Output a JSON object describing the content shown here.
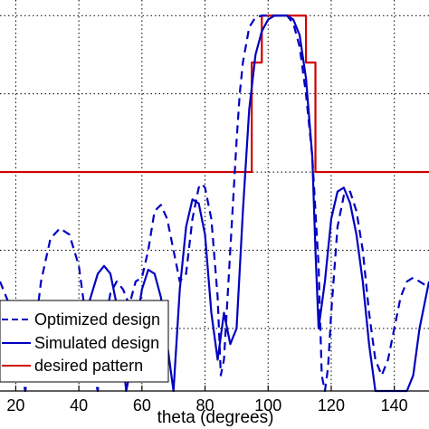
{
  "chart_data": {
    "type": "line",
    "title": "",
    "xlabel": "theta (degrees)",
    "ylabel": "",
    "xlim": [
      15,
      151
    ],
    "ylim": [
      -48,
      2
    ],
    "x_ticks": [
      20,
      40,
      60,
      80,
      100,
      120,
      140
    ],
    "x_tick_labels": [
      "20",
      "40",
      "60",
      "80",
      "100",
      "120",
      "140"
    ],
    "y_grid": [
      -40,
      -30,
      -20,
      -10,
      0
    ],
    "grid": true,
    "legend_position": "bottom-left",
    "series": [
      {
        "name": "Optimized design",
        "color": "#0000c0",
        "dash": "dashed",
        "x": [
          15,
          18,
          21,
          23,
          25,
          28,
          31,
          34,
          37,
          40,
          42,
          44,
          46,
          48,
          50,
          52,
          54,
          56,
          58,
          60,
          62,
          64,
          66,
          68,
          70,
          72,
          74,
          76,
          78,
          79,
          80,
          82,
          84,
          85,
          86,
          88,
          90,
          91,
          92,
          94,
          96,
          98,
          100,
          102,
          104,
          105,
          106,
          108,
          110,
          112,
          114,
          116,
          117,
          118,
          119,
          120,
          122,
          124,
          126,
          128,
          130,
          132,
          134,
          136,
          138,
          140,
          142,
          144,
          146,
          148,
          150,
          151
        ],
        "y": [
          -34,
          -37,
          -44,
          -48,
          -44,
          -34,
          -28.5,
          -27.2,
          -28,
          -32,
          -38,
          -45,
          -48,
          -40,
          -35.5,
          -34,
          -35,
          -37,
          -34,
          -33.5,
          -30,
          -25,
          -24.2,
          -26,
          -30,
          -34,
          -33,
          -26,
          -22,
          -21.5,
          -22,
          -26,
          -36,
          -46,
          -44,
          -30,
          -16,
          -10,
          -6,
          -1.5,
          -0.2,
          0,
          0,
          0,
          0,
          0,
          0,
          -1,
          -4,
          -10,
          -18,
          -32,
          -46,
          -48,
          -45,
          -38,
          -27,
          -23,
          -22.5,
          -25,
          -30,
          -38,
          -44,
          -46,
          -44,
          -40,
          -36,
          -34,
          -33.5,
          -34,
          -34.5,
          -34.2
        ]
      },
      {
        "name": "Simulated design",
        "color": "#0000c0",
        "dash": "solid",
        "x": [
          15,
          20,
          25,
          28,
          31,
          34,
          37,
          40,
          43,
          46,
          48,
          50,
          52,
          54,
          55,
          56,
          58,
          60,
          62,
          64,
          66,
          68,
          70,
          72,
          74,
          76,
          78,
          80,
          82,
          84,
          86,
          88,
          90,
          92,
          94,
          96,
          98,
          100,
          102,
          104,
          105,
          106,
          108,
          110,
          112,
          114,
          115,
          116,
          118,
          120,
          122,
          124,
          126,
          128,
          130,
          132,
          134,
          136,
          138,
          140,
          142,
          144,
          146,
          148,
          150,
          151
        ],
        "y": [
          -46,
          -44,
          -41.5,
          -40.5,
          -40,
          -39.5,
          -39,
          -38,
          -37,
          -33,
          -32,
          -33,
          -37,
          -44,
          -48,
          -46,
          -40,
          -35,
          -32.5,
          -33,
          -36,
          -42,
          -48,
          -35,
          -27,
          -23.5,
          -24,
          -28,
          -38,
          -44,
          -38,
          -42,
          -40,
          -25,
          -12,
          -5,
          -2,
          -0.5,
          0,
          0,
          0,
          0,
          -0.5,
          -2.5,
          -8,
          -18,
          -30,
          -40,
          -34,
          -26,
          -22.5,
          -22,
          -24,
          -28,
          -34,
          -42,
          -48,
          -48,
          -48,
          -48,
          -48,
          -48,
          -46,
          -40,
          -36,
          -34
        ]
      },
      {
        "name": "desired pattern",
        "color": "#d00000",
        "dash": "solid",
        "x": [
          15,
          94.8,
          94.8,
          98,
          98,
          112,
          112,
          115,
          115,
          151
        ],
        "y": [
          -20,
          -20,
          -6,
          -6,
          0,
          0,
          -6,
          -6,
          -20,
          -20
        ]
      }
    ]
  }
}
